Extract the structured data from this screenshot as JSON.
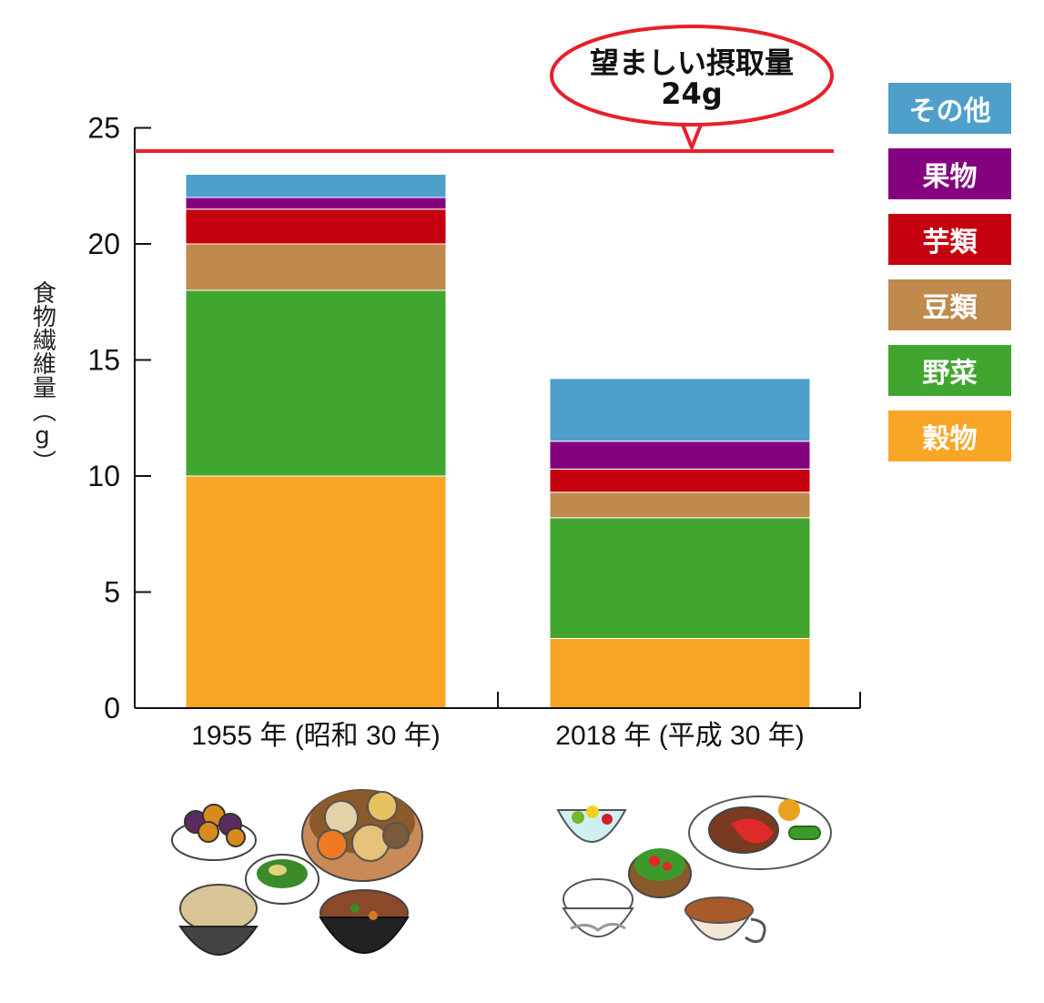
{
  "chart_data": {
    "type": "bar",
    "stacked": true,
    "title": "",
    "xlabel": "",
    "ylabel": "食物繊維量（g）",
    "ylim": [
      0,
      25
    ],
    "yticks": [
      0,
      5,
      10,
      15,
      20,
      25
    ],
    "grid": false,
    "legend_position": "right",
    "categories": [
      "1955 年 (昭和 30 年)",
      "2018 年 (平成 30 年)"
    ],
    "series": [
      {
        "name": "穀物",
        "color": "#f9a526",
        "values": [
          10.0,
          3.0
        ]
      },
      {
        "name": "野菜",
        "color": "#40a62f",
        "values": [
          8.0,
          5.2
        ]
      },
      {
        "name": "豆類",
        "color": "#c08a4d",
        "values": [
          2.0,
          1.1
        ]
      },
      {
        "name": "芋類",
        "color": "#c5000f",
        "values": [
          1.5,
          1.0
        ]
      },
      {
        "name": "果物",
        "color": "#84017f",
        "values": [
          0.5,
          1.2
        ]
      },
      {
        "name": "その他",
        "color": "#4f9fcb",
        "values": [
          1.0,
          2.7
        ]
      }
    ],
    "reference_line": {
      "value": 24,
      "color": "#e8202a",
      "label_line1": "望ましい摂取量",
      "label_line2": "24g"
    }
  },
  "illustrations": [
    {
      "icon": "japanese-traditional-meal-illustration"
    },
    {
      "icon": "modern-western-meal-illustration"
    }
  ]
}
